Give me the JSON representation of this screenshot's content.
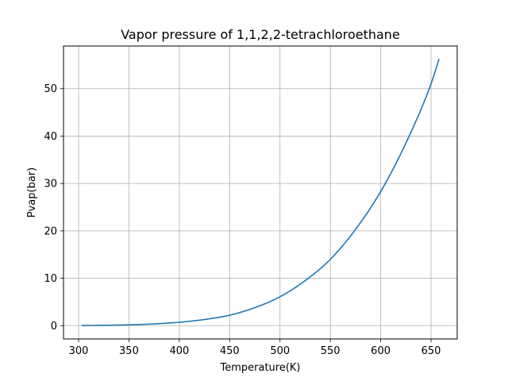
{
  "chart_data": {
    "type": "line",
    "title": "Vapor pressure of 1,1,2,2-tetrachloroethane",
    "xlabel": "Temperature(K)",
    "ylabel": "Pvap(bar)",
    "xlim": [
      285,
      676
    ],
    "ylim": [
      -2.8,
      59
    ],
    "xticks": [
      300,
      350,
      400,
      450,
      500,
      550,
      600,
      650
    ],
    "yticks": [
      0,
      10,
      20,
      30,
      40,
      50
    ],
    "grid": true,
    "line_color": "#1f77b4",
    "series": [
      {
        "x": [
          303,
          325,
          350,
          375,
          400,
          425,
          450,
          475,
          500,
          525,
          550,
          575,
          600,
          625,
          650,
          658
        ],
        "y": [
          0.03,
          0.07,
          0.18,
          0.38,
          0.72,
          1.3,
          2.2,
          3.8,
          6.1,
          9.5,
          14.0,
          20.3,
          28.3,
          38.5,
          51.0,
          56.3
        ]
      }
    ]
  }
}
